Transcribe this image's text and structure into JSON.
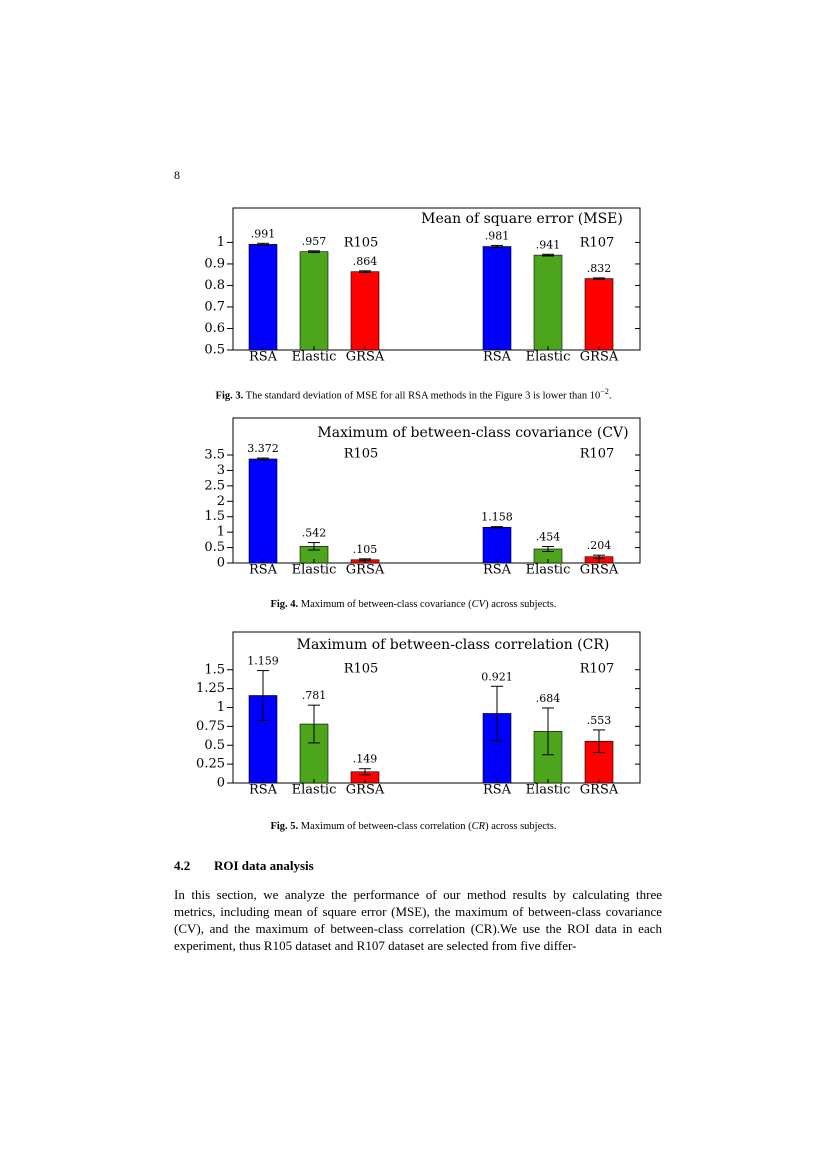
{
  "page_number": "8",
  "chart_data": [
    {
      "type": "bar",
      "title": "Mean of square error (MSE)",
      "annotations": [
        "R105",
        "R107"
      ],
      "categories": [
        "RSA",
        "Elastic",
        "GRSA",
        "RSA",
        "Elastic",
        "GRSA"
      ],
      "values": [
        0.991,
        0.957,
        0.864,
        0.981,
        0.941,
        0.832
      ],
      "value_labels": [
        ".991",
        ".957",
        ".864",
        ".981",
        ".941",
        ".832"
      ],
      "errors": [
        0.005,
        0.004,
        0.004,
        0.005,
        0.004,
        0.003
      ],
      "colors": [
        "#0000ff",
        "#4ca51a",
        "#ff0000",
        "#0000ff",
        "#4ca51a",
        "#ff0000"
      ],
      "ylim": [
        0.5,
        1.16
      ],
      "yticks": [
        0.5,
        0.6,
        0.7,
        0.8,
        0.9,
        1
      ]
    },
    {
      "type": "bar",
      "title": "Maximum of between-class covariance (CV)",
      "annotations": [
        "R105",
        "R107"
      ],
      "categories": [
        "RSA",
        "Elastic",
        "GRSA",
        "RSA",
        "Elastic",
        "GRSA"
      ],
      "values": [
        3.372,
        0.542,
        0.105,
        1.158,
        0.454,
        0.204
      ],
      "value_labels": [
        "3.372",
        ".542",
        ".105",
        "1.158",
        ".454",
        ".204"
      ],
      "errors": [
        0.03,
        0.12,
        0.03,
        0.02,
        0.08,
        0.05
      ],
      "colors": [
        "#0000ff",
        "#4ca51a",
        "#ff0000",
        "#0000ff",
        "#4ca51a",
        "#ff0000"
      ],
      "ylim": [
        0,
        4.7
      ],
      "yticks": [
        0,
        0.5,
        1,
        1.5,
        2,
        2.5,
        3,
        3.5
      ]
    },
    {
      "type": "bar",
      "title": "Maximum of between-class correlation (CR)",
      "annotations": [
        "R105",
        "R107"
      ],
      "categories": [
        "RSA",
        "Elastic",
        "GRSA",
        "RSA",
        "Elastic",
        "GRSA"
      ],
      "values": [
        1.159,
        0.781,
        0.149,
        0.921,
        0.684,
        0.553
      ],
      "value_labels": [
        "1.159",
        ".781",
        ".149",
        "0.921",
        ".684",
        ".553"
      ],
      "errors": [
        0.33,
        0.25,
        0.04,
        0.36,
        0.31,
        0.15
      ],
      "colors": [
        "#0000ff",
        "#4ca51a",
        "#ff0000",
        "#0000ff",
        "#4ca51a",
        "#ff0000"
      ],
      "ylim": [
        0,
        2
      ],
      "yticks": [
        0,
        0.25,
        0.5,
        0.75,
        1,
        1.25,
        1.5
      ]
    }
  ],
  "captions": [
    {
      "label": "Fig. 3.",
      "text": " The standard deviation of MSE for all RSA methods in the Figure 3 is lower than 10",
      "sup": "−2",
      "end": "."
    },
    {
      "label": "Fig. 4.",
      "text": " Maximum of between-class covariance (",
      "italic": "CV",
      "end": ") across subjects."
    },
    {
      "label": "Fig. 5.",
      "text": " Maximum of between-class correlation (",
      "italic": "CR",
      "end": ") across subjects."
    }
  ],
  "section": {
    "number": "4.2",
    "title": "ROI data analysis",
    "paragraph": "In this section, we analyze the performance of our method results by calculating three metrics, including mean of square error (MSE), the maximum of between-class covariance (CV), and the maximum of between-class correlation (CR).We use the ROI data in each experiment, thus R105 dataset and R107 dataset are selected from five differ-"
  }
}
